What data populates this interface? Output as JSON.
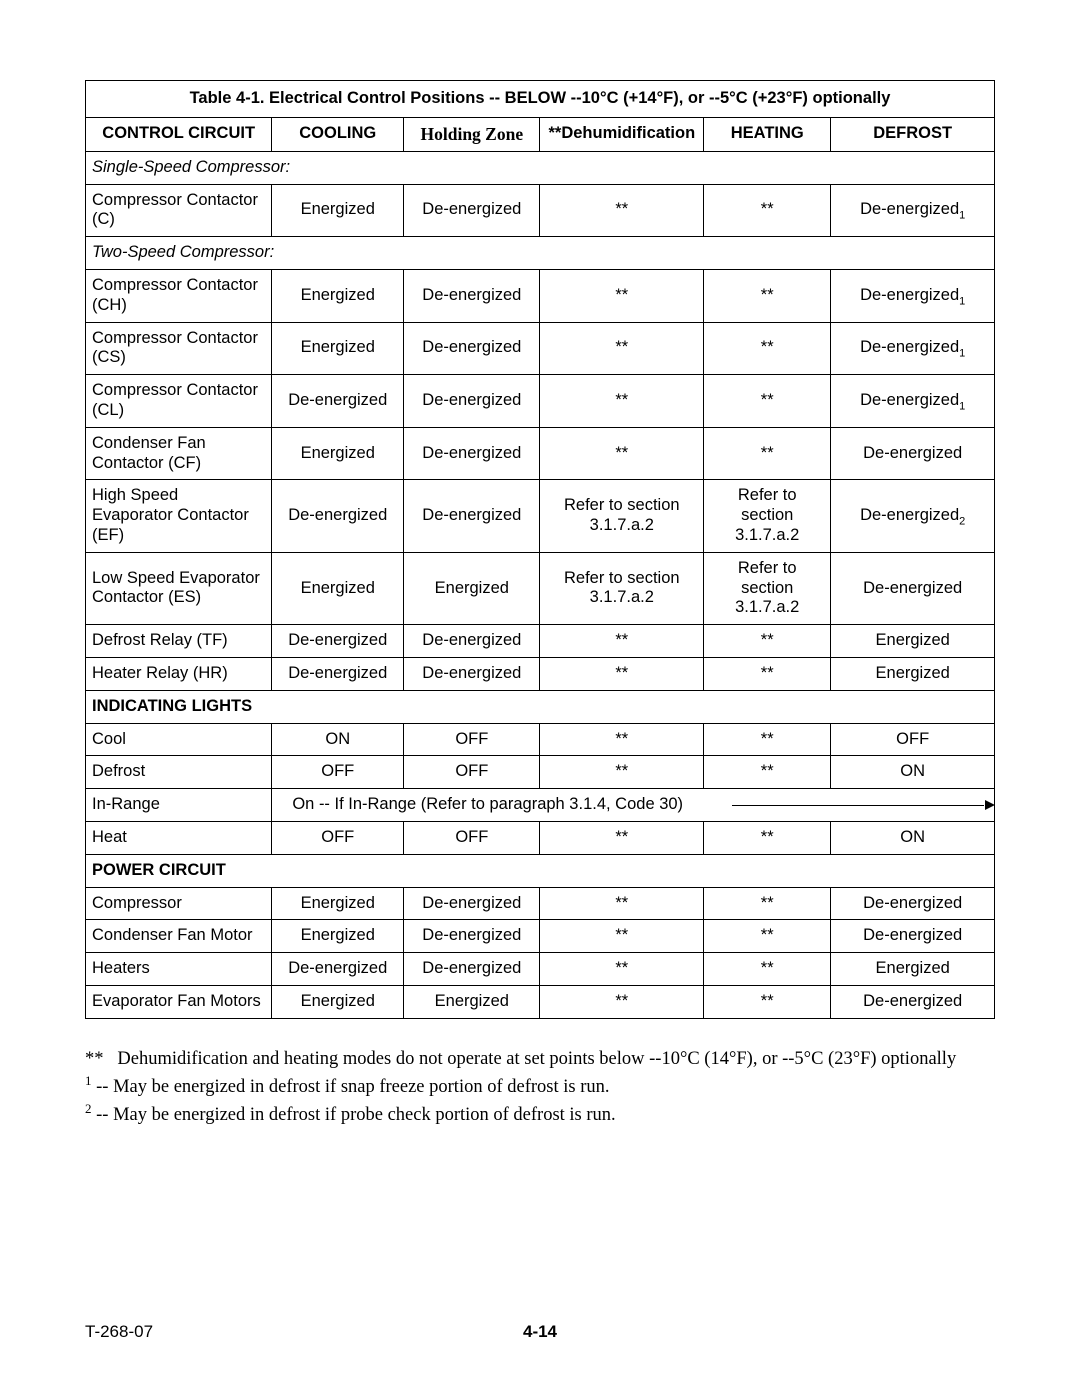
{
  "table": {
    "title": "Table 4-1. Electrical Control Positions -- BELOW --10°C (+14°F), or --5°C (+23°F) optionally",
    "headers": [
      "CONTROL CIRCUIT",
      "COOLING",
      "Holding Zone",
      "**Dehumidification",
      "HEATING",
      "DEFROST"
    ],
    "col_widths_pct": [
      20.5,
      14.5,
      15,
      18,
      14,
      18
    ],
    "sections": [
      {
        "type": "section",
        "label": "Single-Speed Compressor:"
      },
      {
        "type": "row",
        "cells": [
          "Compressor Contactor (C)",
          "Energized",
          "De-energized",
          "**",
          "**",
          "De-energized"
        ],
        "sup": "1"
      },
      {
        "type": "section",
        "label": "Two-Speed Compressor:"
      },
      {
        "type": "row",
        "cells": [
          "Compressor Contactor (CH)",
          "Energized",
          "De-energized",
          "**",
          "**",
          "De-energized"
        ],
        "sup": "1"
      },
      {
        "type": "row",
        "cells": [
          "Compressor Contactor (CS)",
          "Energized",
          "De-energized",
          "**",
          "**",
          "De-energized"
        ],
        "sup": "1"
      },
      {
        "type": "row",
        "cells": [
          "Compressor Contactor (CL)",
          "De-energized",
          "De-energized",
          "**",
          "**",
          "De-energized"
        ],
        "sup": "1"
      },
      {
        "type": "row",
        "cells": [
          "Condenser Fan Contactor (CF)",
          "Energized",
          "De-energized",
          "**",
          "**",
          "De-energized"
        ]
      },
      {
        "type": "row",
        "cells": [
          "High Speed Evaporator Contactor (EF)",
          "De-energized",
          "De-energized",
          "Refer to section 3.1.7.a.2",
          "Refer to section 3.1.7.a.2",
          "De-energized"
        ],
        "sup": "2"
      },
      {
        "type": "row",
        "cells": [
          "Low Speed Evaporator Contactor (ES)",
          "Energized",
          "Energized",
          "Refer to section 3.1.7.a.2",
          "Refer to section 3.1.7.a.2",
          "De-energized"
        ]
      },
      {
        "type": "row",
        "cells": [
          "Defrost Relay (TF)",
          "De-energized",
          "De-energized",
          "**",
          "**",
          "Energized"
        ]
      },
      {
        "type": "row",
        "cells": [
          "Heater Relay (HR)",
          "De-energized",
          "De-energized",
          "**",
          "**",
          "Energized"
        ]
      },
      {
        "type": "section_bold",
        "label": "INDICATING LIGHTS"
      },
      {
        "type": "row",
        "cells": [
          "Cool",
          "ON",
          "OFF",
          "**",
          "**",
          "OFF"
        ]
      },
      {
        "type": "row",
        "cells": [
          "Defrost",
          "OFF",
          "OFF",
          "**",
          "**",
          "ON"
        ]
      },
      {
        "type": "span",
        "label": "In-Range",
        "text": "On -- If In-Range (Refer to paragraph 3.1.4, Code 30)"
      },
      {
        "type": "row",
        "cells": [
          "Heat",
          "OFF",
          "OFF",
          "**",
          "**",
          "ON"
        ]
      },
      {
        "type": "section_bold",
        "label": "POWER CIRCUIT"
      },
      {
        "type": "row",
        "cells": [
          "Compressor",
          "Energized",
          "De-energized",
          "**",
          "**",
          "De-energized"
        ]
      },
      {
        "type": "row",
        "cells": [
          "Condenser Fan Motor",
          "Energized",
          "De-energized",
          "**",
          "**",
          "De-energized"
        ]
      },
      {
        "type": "row",
        "cells": [
          "Heaters",
          "De-energized",
          "De-energized",
          "**",
          "**",
          "Energized"
        ]
      },
      {
        "type": "row",
        "cells": [
          "Evaporator Fan Motors",
          "Energized",
          "Energized",
          "**",
          "**",
          "De-energized"
        ]
      }
    ]
  },
  "footnotes": {
    "star": "Dehumidification and heating modes do not operate at set points below --10°C (14°F), or --5°C (23°F) optionally",
    "n1": "-- May be energized in defrost if snap freeze portion of defrost is run.",
    "n2": "-- May be energized in defrost if probe check portion of defrost is run."
  },
  "footer": {
    "left": "T-268-07",
    "page": "4-14"
  }
}
